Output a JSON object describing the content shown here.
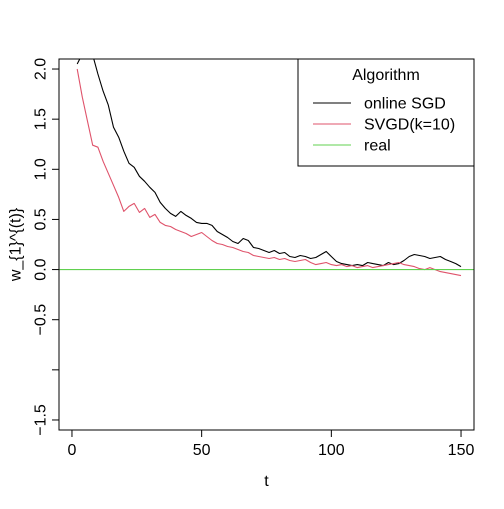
{
  "chart_data": {
    "type": "line",
    "title": "",
    "xlabel": "t",
    "ylabel": "w_{1}^{(t)}",
    "xlim": [
      -5,
      155
    ],
    "ylim": [
      -1.6,
      2.1
    ],
    "x_ticks": [
      0,
      50,
      100,
      150
    ],
    "y_ticks": [
      -1.5,
      -1.0,
      -0.5,
      0.0,
      0.5,
      1.0,
      1.5,
      2.0
    ],
    "y_tick_labels": [
      "−1.5",
      "",
      "−0.5",
      "0.0",
      "0.5",
      "1.0",
      "1.5",
      "2.0"
    ],
    "grid": false,
    "legend": {
      "title": "Algorithm",
      "position": "top-right"
    },
    "series": [
      {
        "name": "online SGD",
        "color": "#000000",
        "x": [
          2,
          4,
          6,
          8,
          10,
          12,
          14,
          16,
          18,
          20,
          22,
          24,
          26,
          28,
          30,
          32,
          34,
          36,
          38,
          40,
          42,
          44,
          46,
          48,
          50,
          52,
          54,
          56,
          58,
          60,
          62,
          64,
          66,
          68,
          70,
          72,
          74,
          76,
          78,
          80,
          82,
          84,
          86,
          88,
          90,
          92,
          94,
          96,
          98,
          100,
          102,
          104,
          106,
          108,
          110,
          112,
          114,
          116,
          118,
          120,
          122,
          124,
          126,
          128,
          130,
          132,
          134,
          136,
          138,
          140,
          142,
          144,
          146,
          148,
          150
        ],
        "y": [
          2.05,
          2.15,
          2.18,
          2.14,
          1.95,
          1.78,
          1.64,
          1.42,
          1.32,
          1.18,
          1.06,
          1.02,
          0.93,
          0.88,
          0.82,
          0.77,
          0.67,
          0.61,
          0.56,
          0.53,
          0.58,
          0.54,
          0.51,
          0.47,
          0.46,
          0.46,
          0.44,
          0.38,
          0.35,
          0.32,
          0.28,
          0.26,
          0.31,
          0.29,
          0.22,
          0.21,
          0.19,
          0.17,
          0.19,
          0.16,
          0.17,
          0.13,
          0.12,
          0.14,
          0.13,
          0.11,
          0.12,
          0.15,
          0.18,
          0.13,
          0.08,
          0.06,
          0.05,
          0.04,
          0.05,
          0.04,
          0.07,
          0.06,
          0.05,
          0.04,
          0.07,
          0.05,
          0.06,
          0.09,
          0.13,
          0.15,
          0.14,
          0.13,
          0.11,
          0.12,
          0.13,
          0.1,
          0.08,
          0.06,
          0.03
        ]
      },
      {
        "name": "SVGD(k=10)",
        "color": "#DF536B",
        "x": [
          2,
          4,
          6,
          8,
          10,
          12,
          14,
          16,
          18,
          20,
          22,
          24,
          26,
          28,
          30,
          32,
          34,
          36,
          38,
          40,
          42,
          44,
          46,
          48,
          50,
          52,
          54,
          56,
          58,
          60,
          62,
          64,
          66,
          68,
          70,
          72,
          74,
          76,
          78,
          80,
          82,
          84,
          86,
          88,
          90,
          92,
          94,
          96,
          98,
          100,
          102,
          104,
          106,
          108,
          110,
          112,
          114,
          116,
          118,
          120,
          122,
          124,
          126,
          128,
          130,
          132,
          134,
          136,
          138,
          140,
          142,
          144,
          146,
          148,
          150
        ],
        "y": [
          2.0,
          1.72,
          1.48,
          1.24,
          1.22,
          1.08,
          0.96,
          0.84,
          0.72,
          0.58,
          0.63,
          0.66,
          0.57,
          0.61,
          0.52,
          0.55,
          0.47,
          0.44,
          0.43,
          0.4,
          0.38,
          0.36,
          0.33,
          0.35,
          0.37,
          0.33,
          0.29,
          0.26,
          0.25,
          0.23,
          0.22,
          0.2,
          0.18,
          0.17,
          0.14,
          0.13,
          0.12,
          0.11,
          0.12,
          0.1,
          0.11,
          0.09,
          0.08,
          0.09,
          0.1,
          0.07,
          0.05,
          0.06,
          0.07,
          0.05,
          0.04,
          0.05,
          0.03,
          0.04,
          0.02,
          0.03,
          0.04,
          0.02,
          0.03,
          0.04,
          0.05,
          0.06,
          0.07,
          0.05,
          0.04,
          0.03,
          0.01,
          0.0,
          0.02,
          0.0,
          -0.02,
          -0.03,
          -0.04,
          -0.05,
          -0.06
        ]
      },
      {
        "name": "real",
        "color": "#61D04F",
        "x": [
          -5,
          155
        ],
        "y": [
          0,
          0
        ]
      }
    ]
  }
}
